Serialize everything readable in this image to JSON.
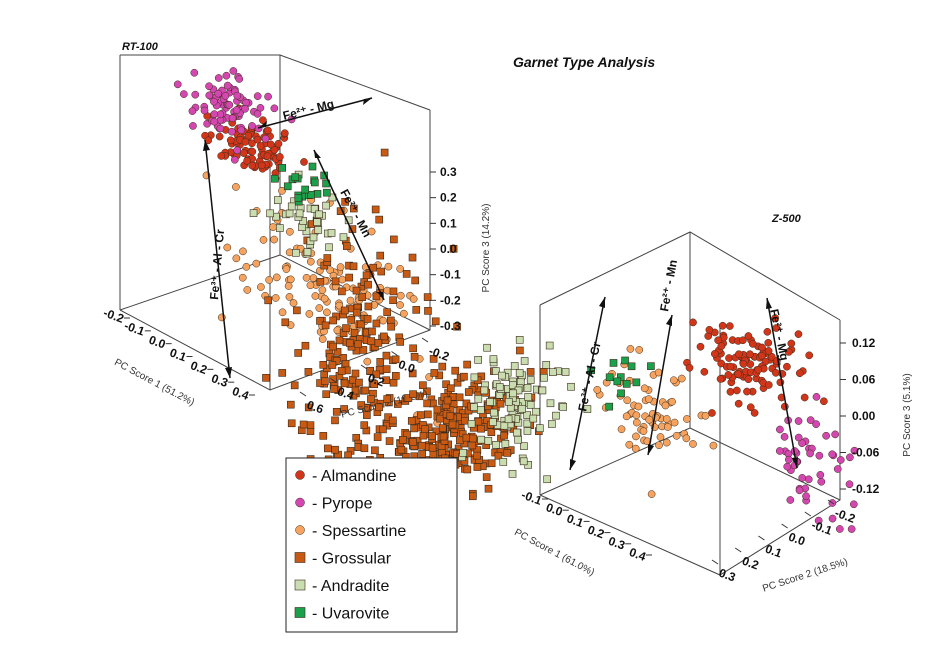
{
  "title": "Garnet Type Analysis",
  "chart_data": [
    {
      "type": "scatter",
      "subtitle": "RT-100",
      "axes": {
        "x": {
          "label": "PC Score 1 (51.2%)",
          "ticks": [
            "-0.2",
            "-0.1",
            "0.0",
            "0.1",
            "0.2",
            "0.3",
            "0.4"
          ],
          "range": [
            -0.2,
            0.4
          ]
        },
        "y": {
          "label": "PC Score 2 (15.2%)",
          "ticks": [
            "0.6",
            "0.4",
            "0.2",
            "0.0",
            "-0.2"
          ],
          "range": [
            -0.2,
            0.6
          ]
        },
        "z": {
          "label": "PC Score 3 (14.2%)",
          "ticks": [
            "0.3",
            "0.2",
            "0.1",
            "0.0",
            "-0.1",
            "-0.2",
            "-0.3"
          ],
          "range": [
            -0.3,
            0.3
          ]
        }
      },
      "annotations": [
        {
          "type": "text",
          "text": "Fe²⁺ - Mg"
        },
        {
          "type": "text",
          "text": "Fe²⁺ - Mn"
        },
        {
          "type": "text",
          "text": "Fe³⁺ - Al - Cr"
        }
      ],
      "series": [
        {
          "name": "Almandine",
          "n": 90,
          "centroid": [
            -0.02,
            -0.05,
            0.26
          ],
          "spread": [
            0.03,
            0.04,
            0.03
          ]
        },
        {
          "name": "Pyrope",
          "n": 80,
          "centroid": [
            -0.1,
            -0.15,
            0.28
          ],
          "spread": [
            0.04,
            0.04,
            0.04
          ]
        },
        {
          "name": "Spessartine",
          "n": 120,
          "centroid": [
            0.05,
            0.15,
            0.0
          ],
          "spread": [
            0.03,
            0.1,
            0.1
          ]
        },
        {
          "name": "Grossular",
          "n": 240,
          "centroid": [
            0.25,
            0.35,
            -0.05
          ],
          "spread": [
            0.08,
            0.06,
            0.2
          ]
        },
        {
          "name": "Andradite",
          "n": 40,
          "centroid": [
            0.18,
            0.18,
            0.26
          ],
          "spread": [
            0.04,
            0.03,
            0.04
          ]
        },
        {
          "name": "Uvarovite",
          "n": 20,
          "centroid": [
            0.1,
            0.15,
            0.3
          ],
          "spread": [
            0.03,
            0.03,
            0.02
          ]
        }
      ]
    },
    {
      "type": "scatter",
      "subtitle": "Z-500",
      "axes": {
        "x": {
          "label": "PC Score 1 (61.0%)",
          "ticks": [
            "-0.1",
            "0.0",
            "0.1",
            "0.2",
            "0.3",
            "0.4"
          ],
          "range": [
            -0.1,
            0.4
          ]
        },
        "y": {
          "label": "PC Score 2 (18.5%)",
          "ticks": [
            "0.3",
            "0.2",
            "0.1",
            "0.0",
            "-0.1",
            "-0.2"
          ],
          "range": [
            -0.2,
            0.3
          ]
        },
        "z": {
          "label": "PC Score 3 (5.1%)",
          "ticks": [
            "0.12",
            "0.06",
            "0.00",
            "-0.06",
            "-0.12"
          ],
          "range": [
            -0.12,
            0.12
          ]
        }
      },
      "annotations": [
        {
          "type": "text",
          "text": "Fe³⁺ - Al - Cr"
        },
        {
          "type": "text",
          "text": "Fe²⁺ - Mn"
        },
        {
          "type": "text",
          "text": "Fe²⁺ - Mg"
        }
      ],
      "series": [
        {
          "name": "Almandine",
          "n": 110,
          "centroid": [
            -0.05,
            -0.05,
            0.09
          ],
          "spread": [
            0.03,
            0.04,
            0.025
          ]
        },
        {
          "name": "Pyrope",
          "n": 50,
          "centroid": [
            -0.07,
            -0.15,
            -0.03
          ],
          "spread": [
            0.03,
            0.03,
            0.04
          ]
        },
        {
          "name": "Spessartine",
          "n": 70,
          "centroid": [
            0.05,
            0.05,
            0.01
          ],
          "spread": [
            0.03,
            0.04,
            0.03
          ]
        },
        {
          "name": "Grossular",
          "n": 220,
          "centroid": [
            0.3,
            0.22,
            -0.01
          ],
          "spread": [
            0.06,
            0.03,
            0.04
          ]
        },
        {
          "name": "Andradite",
          "n": 110,
          "centroid": [
            0.24,
            0.16,
            0.04
          ],
          "spread": [
            0.05,
            0.03,
            0.04
          ]
        },
        {
          "name": "Uvarovite",
          "n": 12,
          "centroid": [
            0.12,
            0.06,
            0.08
          ],
          "spread": [
            0.03,
            0.02,
            0.02
          ]
        }
      ]
    }
  ],
  "legend": {
    "items": [
      {
        "label": "Almandine",
        "marker": "circle",
        "color": "#D1361A"
      },
      {
        "label": "Pyrope",
        "marker": "circle",
        "color": "#D447B0"
      },
      {
        "label": "Spessartine",
        "marker": "circle",
        "color": "#F5A35F"
      },
      {
        "label": "Grossular",
        "marker": "square",
        "color": "#C85A14"
      },
      {
        "label": "Andradite",
        "marker": "square",
        "color": "#C9DDB0"
      },
      {
        "label": "Uvarovite",
        "marker": "square",
        "color": "#1BA14B"
      }
    ]
  }
}
